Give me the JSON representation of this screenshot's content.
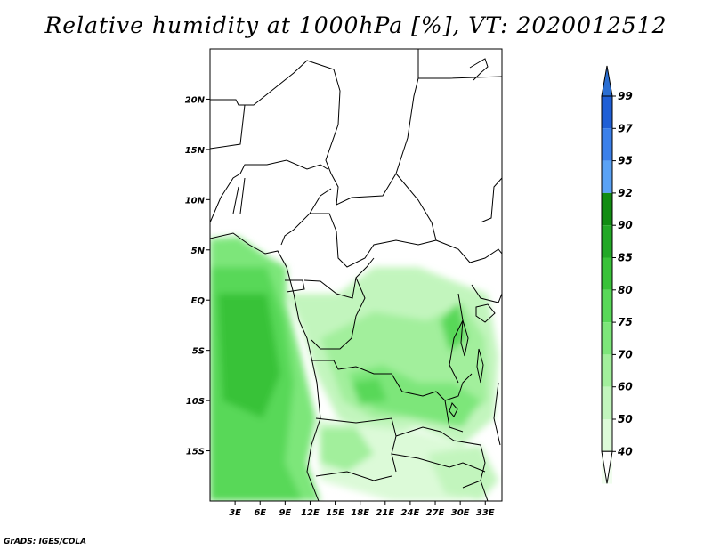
{
  "title": "Relative humidity at 1000hPa [%], VT: 2020012512",
  "credit": "GrADS: IGES/COLA",
  "map": {
    "lon_range": [
      0,
      35
    ],
    "lat_range": [
      -20,
      25
    ],
    "lat_ticks": [
      {
        "value": 20,
        "label": "20N"
      },
      {
        "value": 15,
        "label": "15N"
      },
      {
        "value": 10,
        "label": "10N"
      },
      {
        "value": 5,
        "label": "5N"
      },
      {
        "value": 0,
        "label": "EQ"
      },
      {
        "value": -5,
        "label": "5S"
      },
      {
        "value": -10,
        "label": "10S"
      },
      {
        "value": -15,
        "label": "15S"
      }
    ],
    "lon_ticks": [
      {
        "value": 3,
        "label": "3E"
      },
      {
        "value": 6,
        "label": "6E"
      },
      {
        "value": 9,
        "label": "9E"
      },
      {
        "value": 12,
        "label": "12E"
      },
      {
        "value": 15,
        "label": "15E"
      },
      {
        "value": 18,
        "label": "18E"
      },
      {
        "value": 21,
        "label": "21E"
      },
      {
        "value": 24,
        "label": "24E"
      },
      {
        "value": 27,
        "label": "27E"
      },
      {
        "value": 30,
        "label": "30E"
      },
      {
        "value": 33,
        "label": "33E"
      }
    ]
  },
  "colorbar": {
    "levels": [
      {
        "label": "99",
        "color": "#1f5fd6"
      },
      {
        "label": "97",
        "color": "#3b80ea"
      },
      {
        "label": "95",
        "color": "#5aa2f5"
      },
      {
        "label": "92",
        "color": "#118c12"
      },
      {
        "label": "90",
        "color": "#22a826"
      },
      {
        "label": "85",
        "color": "#39c239"
      },
      {
        "label": "80",
        "color": "#58d858"
      },
      {
        "label": "75",
        "color": "#7de67a"
      },
      {
        "label": "70",
        "color": "#a2ef9c"
      },
      {
        "label": "60",
        "color": "#c2f5bd"
      },
      {
        "label": "50",
        "color": "#dcfad8"
      },
      {
        "label": "40",
        "color": "#f0fdee"
      }
    ],
    "top_color": "#2a6ed2",
    "bottom_color": "#ffffff"
  }
}
